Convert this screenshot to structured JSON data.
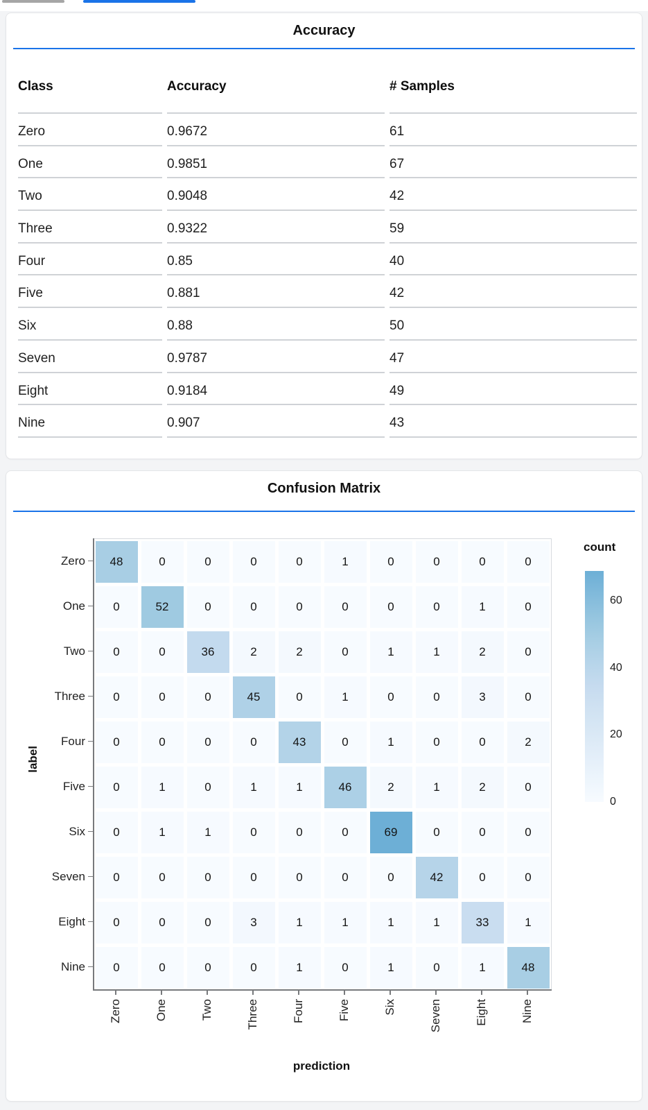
{
  "page": {
    "background": "#f3f4f6",
    "accent_blue": "#1a73e8",
    "top_gray_bar_color": "#a6a6a6"
  },
  "accuracy_card": {
    "title": "Accuracy",
    "underline_color": "#1a73e8",
    "table": {
      "columns": [
        "Class",
        "Accuracy",
        "# Samples"
      ],
      "rows": [
        {
          "class": "Zero",
          "accuracy": "0.9672",
          "samples": "61"
        },
        {
          "class": "One",
          "accuracy": "0.9851",
          "samples": "67"
        },
        {
          "class": "Two",
          "accuracy": "0.9048",
          "samples": "42"
        },
        {
          "class": "Three",
          "accuracy": "0.9322",
          "samples": "59"
        },
        {
          "class": "Four",
          "accuracy": "0.85",
          "samples": "40"
        },
        {
          "class": "Five",
          "accuracy": "0.881",
          "samples": "42"
        },
        {
          "class": "Six",
          "accuracy": "0.88",
          "samples": "50"
        },
        {
          "class": "Seven",
          "accuracy": "0.9787",
          "samples": "47"
        },
        {
          "class": "Eight",
          "accuracy": "0.9184",
          "samples": "49"
        },
        {
          "class": "Nine",
          "accuracy": "0.907",
          "samples": "43"
        }
      ]
    }
  },
  "confusion_card": {
    "title": "Confusion Matrix",
    "underline_color": "#1a73e8",
    "chart_data": {
      "type": "heatmap",
      "xlabel": "prediction",
      "ylabel": "label",
      "categories": [
        "Zero",
        "One",
        "Two",
        "Three",
        "Four",
        "Five",
        "Six",
        "Seven",
        "Eight",
        "Nine"
      ],
      "matrix": [
        [
          48,
          0,
          0,
          0,
          0,
          1,
          0,
          0,
          0,
          0
        ],
        [
          0,
          52,
          0,
          0,
          0,
          0,
          0,
          0,
          1,
          0
        ],
        [
          0,
          0,
          36,
          2,
          2,
          0,
          1,
          1,
          2,
          0
        ],
        [
          0,
          0,
          0,
          45,
          0,
          1,
          0,
          0,
          3,
          0
        ],
        [
          0,
          0,
          0,
          0,
          43,
          0,
          1,
          0,
          0,
          2
        ],
        [
          0,
          1,
          0,
          1,
          1,
          46,
          2,
          1,
          2,
          0
        ],
        [
          0,
          1,
          1,
          0,
          0,
          0,
          69,
          0,
          0,
          0
        ],
        [
          0,
          0,
          0,
          0,
          0,
          0,
          0,
          42,
          0,
          0
        ],
        [
          0,
          0,
          0,
          3,
          1,
          1,
          1,
          1,
          33,
          1
        ],
        [
          0,
          0,
          0,
          0,
          1,
          0,
          1,
          0,
          1,
          48
        ]
      ],
      "legend": {
        "title": "count",
        "ticks": [
          0,
          20,
          40,
          60
        ],
        "domain_max": 69
      },
      "color_scheme": {
        "name": "blues",
        "stops": [
          "#f7fbff",
          "#deebf7",
          "#c6dbef",
          "#9ecae1",
          "#6baed6",
          "#4292c6",
          "#2171b5"
        ]
      },
      "grid": false,
      "legend_position": "right"
    }
  }
}
